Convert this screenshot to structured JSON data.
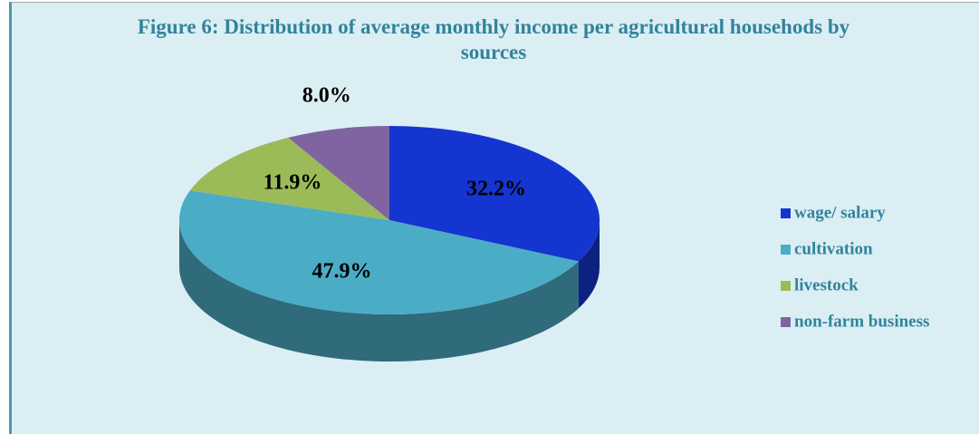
{
  "chart_data": {
    "type": "pie",
    "title": "Figure 6: Distribution of average monthly income per agricultural househods by sources",
    "categories": [
      "wage/ salary",
      "cultivation",
      "livestock",
      "non-farm business"
    ],
    "values": [
      32.2,
      47.9,
      11.9,
      8.0
    ],
    "value_labels": [
      "32.2%",
      "47.9%",
      "11.9%",
      "8.0%"
    ],
    "colors": [
      "#1535d0",
      "#4bacc6",
      "#9bbb59",
      "#8064a2"
    ],
    "legend": "right"
  }
}
